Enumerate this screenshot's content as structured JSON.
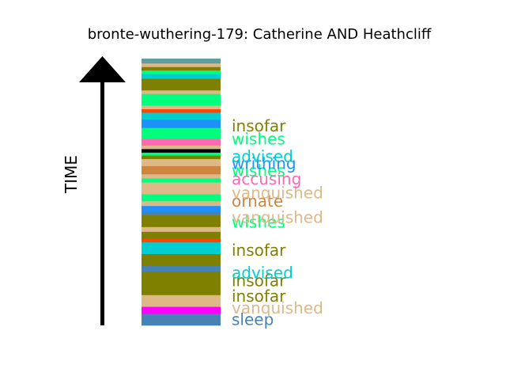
{
  "chart_data": {
    "type": "bar",
    "title": "bronte-wuthering-179: Catherine AND Heathcliff",
    "ylabel": "TIME",
    "orientation": "stacked-vertical-strip",
    "stripes_bottom_to_top": [
      {
        "color": "#4682b4",
        "h": 1.0
      },
      {
        "color": "#ff00ff",
        "h": 0.6
      },
      {
        "color": "#deb887",
        "h": 1.0
      },
      {
        "color": "#808000",
        "h": 2.0
      },
      {
        "color": "#4682b4",
        "h": 0.5
      },
      {
        "color": "#808000",
        "h": 1.0
      },
      {
        "color": "#00ced1",
        "h": 1.0
      },
      {
        "color": "#ff4500",
        "h": 0.3
      },
      {
        "color": "#808000",
        "h": 0.6
      },
      {
        "color": "#deb887",
        "h": 0.4
      },
      {
        "color": "#808000",
        "h": 1.0
      },
      {
        "color": "#4682b4",
        "h": 0.3
      },
      {
        "color": "#1e90ff",
        "h": 0.5
      },
      {
        "color": "#deb887",
        "h": 0.4
      },
      {
        "color": "#00ff7f",
        "h": 0.6
      },
      {
        "color": "#deb887",
        "h": 0.3
      },
      {
        "color": "#deb887",
        "h": 0.7
      },
      {
        "color": "#00ff7f",
        "h": 0.35
      },
      {
        "color": "#deb887",
        "h": 0.35
      },
      {
        "color": "#cd853f",
        "h": 0.7
      },
      {
        "color": "#deb887",
        "h": 0.6
      },
      {
        "color": "#808000",
        "h": 0.3
      },
      {
        "color": "#00ff7f",
        "h": 0.25
      },
      {
        "color": "#000000",
        "h": 0.3
      },
      {
        "color": "#deb887",
        "h": 0.3
      },
      {
        "color": "#ff69b4",
        "h": 0.6
      },
      {
        "color": "#00ff7f",
        "h": 0.9
      },
      {
        "color": "#1e90ff",
        "h": 0.7
      },
      {
        "color": "#00ced1",
        "h": 0.6
      },
      {
        "color": "#ff4500",
        "h": 0.3
      },
      {
        "color": "#deb887",
        "h": 0.3
      },
      {
        "color": "#00ff7f",
        "h": 1.0
      },
      {
        "color": "#deb887",
        "h": 0.3
      },
      {
        "color": "#808000",
        "h": 1.0
      },
      {
        "color": "#00ced1",
        "h": 0.4
      },
      {
        "color": "#00ff7f",
        "h": 0.3
      },
      {
        "color": "#808000",
        "h": 0.3
      },
      {
        "color": "#deb887",
        "h": 0.3
      },
      {
        "color": "#5f9ea0",
        "h": 0.4
      }
    ],
    "labels_bottom_to_top": [
      {
        "text": "sleep",
        "color": "#4682b4",
        "pos": 0.5
      },
      {
        "text": "vanquished",
        "color": "#deb887",
        "pos": 1.5
      },
      {
        "text": "insofar",
        "color": "#808000",
        "pos": 2.5
      },
      {
        "text": "insofar",
        "color": "#808000",
        "pos": 3.8
      },
      {
        "text": "advised",
        "color": "#00ced1",
        "pos": 4.5
      },
      {
        "text": "insofar",
        "color": "#808000",
        "pos": 6.4
      },
      {
        "text": "wishes",
        "color": "#00ff7f",
        "pos": 8.8
      },
      {
        "text": "vanquished",
        "color": "#deb887",
        "pos": 9.2
      },
      {
        "text": "ornate",
        "color": "#cd853f",
        "pos": 10.6
      },
      {
        "text": "vanquished",
        "color": "#deb887",
        "pos": 11.3
      },
      {
        "text": "accusing",
        "color": "#ff69b4",
        "pos": 12.5
      },
      {
        "text": "wishes",
        "color": "#00ff7f",
        "pos": 13.2
      },
      {
        "text": "writhing",
        "color": "#1e90ff",
        "pos": 13.8
      },
      {
        "text": "advised",
        "color": "#00ced1",
        "pos": 14.4
      },
      {
        "text": "wishes",
        "color": "#00ff7f",
        "pos": 15.9
      },
      {
        "text": "insofar",
        "color": "#808000",
        "pos": 17.0
      }
    ]
  }
}
